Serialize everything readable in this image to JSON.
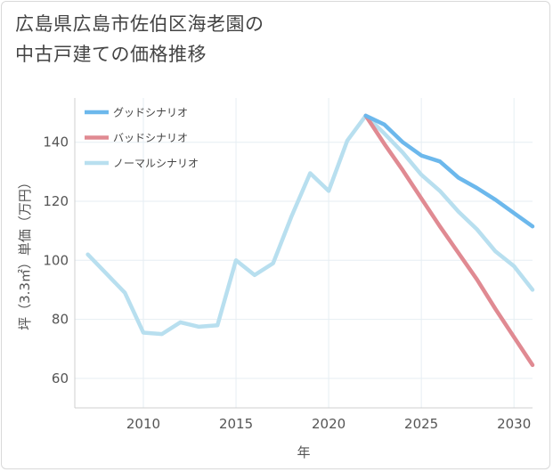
{
  "title_lines": [
    "広島県広島市佐伯区海老園の",
    "中古戸建ての価格推移"
  ],
  "chart_data": {
    "type": "line",
    "title": "広島県広島市佐伯区海老園の中古戸建ての価格推移",
    "xlabel": "年",
    "ylabel": "坪（3.3㎡）単価（万円）",
    "xlim": [
      2006.3,
      2031
    ],
    "ylim": [
      50,
      155
    ],
    "xticks": [
      2010,
      2015,
      2020,
      2025,
      2030
    ],
    "yticks": [
      60,
      80,
      100,
      120,
      140
    ],
    "grid": true,
    "legend_position": "top-left",
    "series": [
      {
        "name": "グッドシナリオ",
        "color": "#6cb8ec",
        "x": [
          2022,
          2023,
          2024,
          2025,
          2026,
          2027,
          2028,
          2029,
          2030,
          2031
        ],
        "y": [
          149,
          146,
          140,
          135.5,
          133.5,
          128,
          124.5,
          120.5,
          116,
          111.5
        ]
      },
      {
        "name": "バッドシナリオ",
        "color": "#e08a92",
        "x": [
          2022,
          2023,
          2024,
          2025,
          2026,
          2027,
          2028,
          2029,
          2030,
          2031
        ],
        "y": [
          149,
          139.5,
          130.5,
          121,
          111.5,
          102.5,
          93.5,
          83.5,
          74,
          64.5
        ]
      },
      {
        "name": "ノーマルシナリオ",
        "color": "#b8dfef",
        "x": [
          2007,
          2008,
          2009,
          2010,
          2011,
          2012,
          2013,
          2014,
          2015,
          2016,
          2017,
          2018,
          2019,
          2020,
          2021,
          2022,
          2023,
          2024,
          2025,
          2026,
          2027,
          2028,
          2029,
          2030,
          2031
        ],
        "y": [
          102,
          95.5,
          89,
          75.5,
          75,
          79,
          77.5,
          78,
          100,
          95,
          99,
          115,
          129.5,
          123.5,
          140.5,
          149,
          143,
          136.5,
          129,
          123.5,
          116.5,
          110.5,
          103,
          98,
          90
        ]
      }
    ]
  }
}
